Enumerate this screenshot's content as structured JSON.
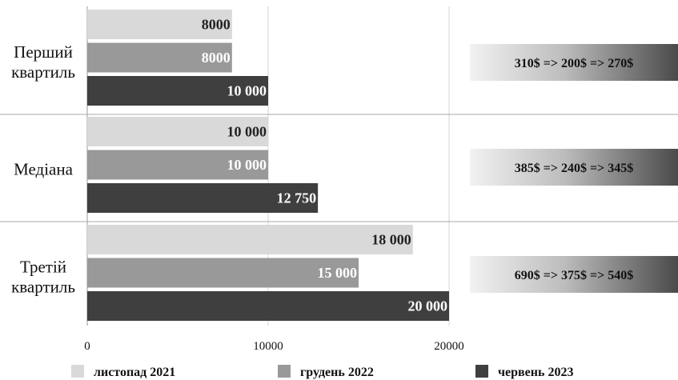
{
  "chart_data": {
    "type": "bar",
    "orientation": "horizontal",
    "categories": [
      "Перший квартиль",
      "Медіана",
      "Третій квартиль"
    ],
    "category_lines": [
      [
        "Перший",
        "квартиль"
      ],
      [
        "Медіана"
      ],
      [
        "Третій",
        "квартиль"
      ]
    ],
    "series": [
      {
        "name": "листопад 2021",
        "values": [
          8000,
          10000,
          18000
        ],
        "labels": [
          "8000",
          "10 000",
          "18 000"
        ],
        "color": "#d9d9d9",
        "label_color": "#222222"
      },
      {
        "name": "грудень 2022",
        "values": [
          8000,
          10000,
          15000
        ],
        "labels": [
          "8000",
          "10 000",
          "15 000"
        ],
        "color": "#999999",
        "label_color": "#ffffff"
      },
      {
        "name": "червень 2023",
        "values": [
          10000,
          12750,
          20000
        ],
        "labels": [
          "10 000",
          "12 750",
          "20 000"
        ],
        "color": "#3f3f3f",
        "label_color": "#ffffff"
      }
    ],
    "xlim": [
      0,
      32000
    ],
    "xticks": [
      0,
      10000,
      20000
    ],
    "xtick_labels": [
      "0",
      "10000",
      "20000"
    ],
    "annotations": [
      "310$ => 200$ => 270$",
      "385$ => 240$ => 345$",
      "690$ => 375$ => 540$"
    ],
    "grid": true,
    "legend_position": "bottom",
    "title": "",
    "xlabel": "",
    "ylabel": ""
  }
}
